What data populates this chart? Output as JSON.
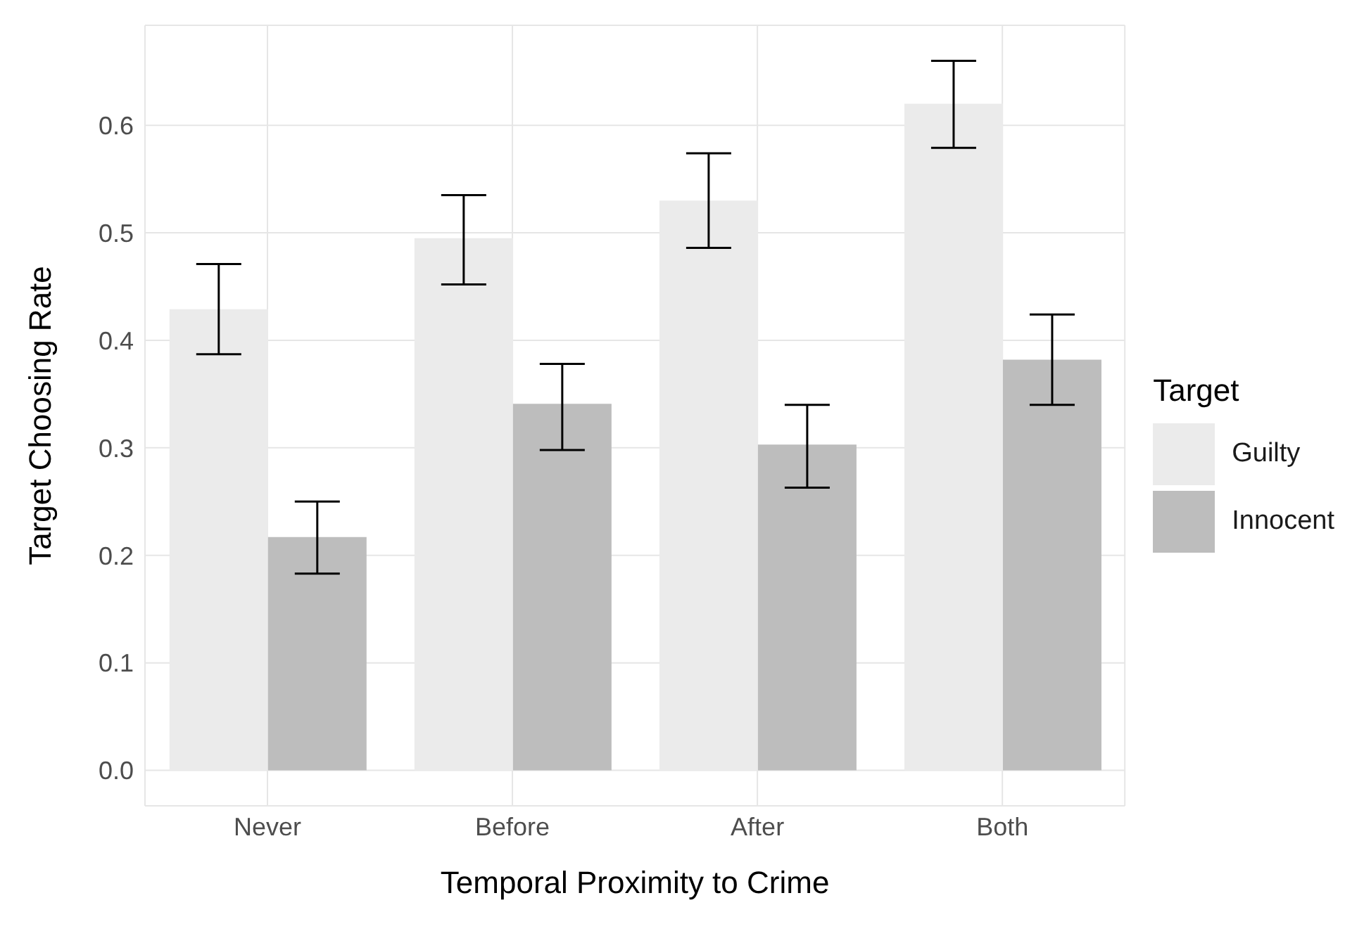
{
  "chart_data": {
    "type": "bar",
    "xlabel": "Temporal Proximity to Crime",
    "ylabel": "Target Choosing Rate",
    "legend_title": "Target",
    "categories": [
      "Never",
      "Before",
      "After",
      "Both"
    ],
    "series": [
      {
        "name": "Guilty",
        "color": "#ebebeb",
        "values": [
          0.429,
          0.495,
          0.53,
          0.62
        ],
        "errors": [
          [
            0.387,
            0.471
          ],
          [
            0.452,
            0.535
          ],
          [
            0.486,
            0.574
          ],
          [
            0.579,
            0.66
          ]
        ]
      },
      {
        "name": "Innocent",
        "color": "#bdbdbd",
        "values": [
          0.217,
          0.341,
          0.303,
          0.382
        ],
        "errors": [
          [
            0.183,
            0.25
          ],
          [
            0.298,
            0.378
          ],
          [
            0.263,
            0.34
          ],
          [
            0.34,
            0.424
          ]
        ]
      }
    ],
    "ylim": [
      -0.033,
      0.693
    ],
    "yticks": [
      {
        "value": 0,
        "label": "0.0"
      },
      0.1,
      0.2,
      0.3,
      0.4,
      0.5,
      0.6
    ],
    "grid": true,
    "legend": "right"
  }
}
